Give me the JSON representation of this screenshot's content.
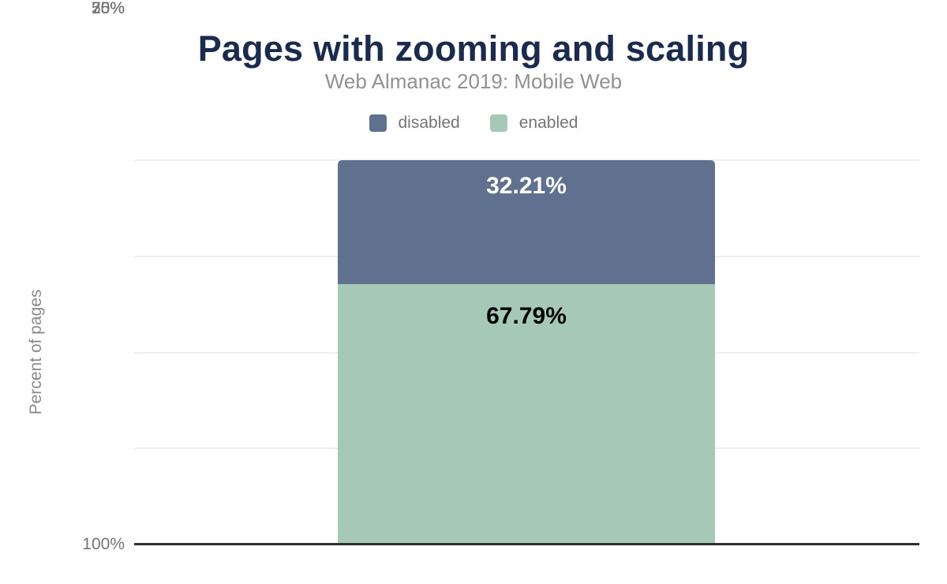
{
  "chart": {
    "title": "Pages with zooming and scaling",
    "subtitle": "Web Almanac 2019: Mobile Web"
  },
  "legend": {
    "items": [
      {
        "label": "disabled",
        "color": "#5f718e"
      },
      {
        "label": "enabled",
        "color": "#a6c9b7"
      }
    ]
  },
  "y_axis": {
    "label": "Percent of pages",
    "ticks": [
      "100%",
      "75%",
      "50%",
      "25%",
      "0%"
    ]
  },
  "chart_data": {
    "type": "bar",
    "stacked": true,
    "title": "Pages with zooming and scaling",
    "subtitle": "Web Almanac 2019: Mobile Web",
    "categories": [
      ""
    ],
    "series": [
      {
        "name": "disabled",
        "values": [
          32.21
        ],
        "color": "#5f718e",
        "data_label": "32.21%",
        "data_label_color": "#ffffff"
      },
      {
        "name": "enabled",
        "values": [
          67.79
        ],
        "color": "#a6c9b7",
        "data_label": "67.79%",
        "data_label_color": "#000000"
      }
    ],
    "xlabel": "",
    "ylabel": "Percent of pages",
    "ylim": [
      0,
      100
    ],
    "yticks": [
      0,
      25,
      50,
      75,
      100
    ],
    "grid": true,
    "legend_position": "top"
  },
  "colors": {
    "title": "#1b2b4e",
    "subtitle": "#919191",
    "axis_text": "#757575",
    "gridline": "#efefef",
    "axis_line": "#2e2e2e",
    "background": "#ffffff"
  }
}
